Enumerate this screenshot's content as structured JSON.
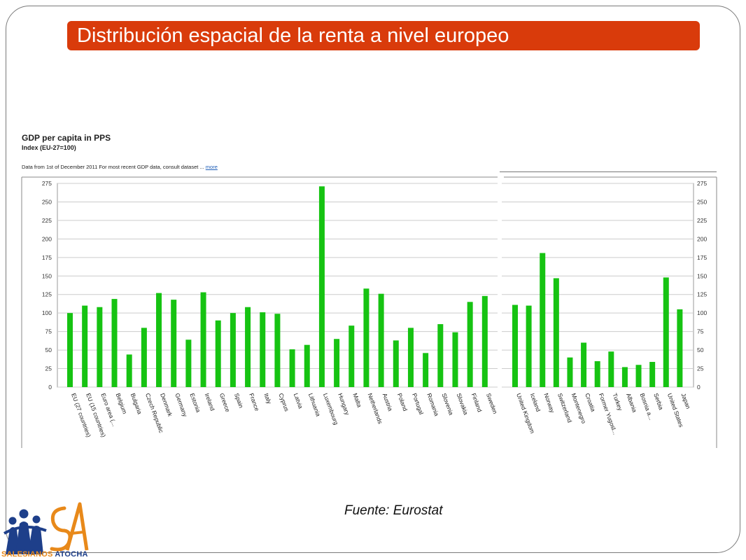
{
  "slide": {
    "title": "Distribución espacial de la renta a nivel europeo",
    "source": "Fuente: Eurostat"
  },
  "logo": {
    "word1": "SALESIANOS",
    "word2": "ATOCHA",
    "colors": {
      "orange": "#e8891a",
      "blue": "#1e3f8a"
    }
  },
  "colors": {
    "title_bar": "#d93b0b",
    "bar": "#16c312",
    "grid": "#cccccc"
  },
  "chart_data": {
    "type": "bar",
    "title": "GDP per capita in PPS",
    "subtitle": "Index (EU-27=100)",
    "note": "Data from 1st of December 2011 For most recent GDP data, consult dataset ...",
    "note_link": "more",
    "ylim": [
      0,
      275
    ],
    "yticks": [
      0,
      25,
      50,
      75,
      100,
      125,
      150,
      175,
      200,
      225,
      250,
      275
    ],
    "grid": true,
    "categories": [
      "EU (27 countries)",
      "EU (15 countries)",
      "Euro area (...",
      "Belgium",
      "Bulgaria",
      "Czech Republic",
      "Denmark",
      "Germany",
      "Estonia",
      "Ireland",
      "Greece",
      "Spain",
      "France",
      "Italy",
      "Cyprus",
      "Latvia",
      "Lithuania",
      "Luxembourg",
      "Hungary",
      "Malta",
      "Netherlands",
      "Austria",
      "Poland",
      "Portugal",
      "Romania",
      "Slovenia",
      "Slovakia",
      "Finland",
      "Sweden",
      "United Kingdom",
      "Iceland",
      "Norway",
      "Switzerland",
      "Montenegro",
      "Croatia",
      "Former Yugosl...",
      "Turkey",
      "Albania",
      "Bosnia a...",
      "Serbia",
      "United States",
      "Japan"
    ],
    "values": [
      100,
      110,
      108,
      119,
      44,
      80,
      127,
      118,
      64,
      128,
      90,
      100,
      108,
      101,
      99,
      51,
      57,
      271,
      65,
      83,
      133,
      126,
      63,
      80,
      46,
      85,
      74,
      115,
      123,
      111,
      110,
      181,
      147,
      40,
      60,
      35,
      48,
      27,
      30,
      34,
      148,
      105
    ]
  }
}
